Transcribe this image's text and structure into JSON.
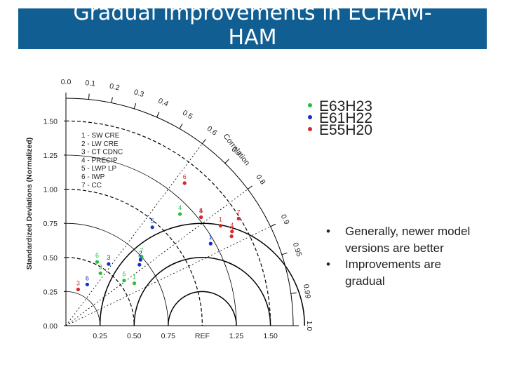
{
  "slide": {
    "title_line1": "Gradual improvements in ECHAM-",
    "title_line2": "HAM",
    "bullets": [
      "Generally, newer model versions are better",
      "Improvements are gradual"
    ],
    "bullet_symbol": "•",
    "colors": {
      "title_bar": "#115e93",
      "E63H23": "#22c03a",
      "E61H22": "#1530c8",
      "E55H20": "#d42a2a"
    }
  },
  "diagram": {
    "type": "taylor-diagram",
    "ylabel": "Standardized Deviations (Normalized)",
    "corr_label": "Correlation",
    "x_ticks": [
      "0.25",
      "0.50",
      "0.75",
      "REF",
      "1.25",
      "1.50"
    ],
    "y_ticks": [
      "0.00",
      "0.25",
      "0.50",
      "0.75",
      "1.00",
      "1.25",
      "1.50"
    ],
    "corr_ticks": [
      "0.0",
      "0.1",
      "0.2",
      "0.3",
      "0.4",
      "0.5",
      "0.6",
      "0.7",
      "0.8",
      "0.9",
      "0.95",
      "0.99",
      "1.0"
    ],
    "variables": [
      "1 - SW CRE",
      "2 - LW CRE",
      "3 - CT CDNC",
      "4 - PRECIP",
      "5 - LWP LP",
      "6 - IWP",
      "7 - CC"
    ],
    "models": [
      "E63H23",
      "E61H22",
      "E55H20"
    ],
    "points": [
      {
        "model": "E63H23",
        "label": "1",
        "corr": 0.85,
        "std": 0.59
      },
      {
        "model": "E63H23",
        "label": "3",
        "corr": 0.55,
        "std": 0.46
      },
      {
        "model": "E63H23",
        "label": "4",
        "corr": 0.715,
        "std": 1.17
      },
      {
        "model": "E63H23",
        "label": "5",
        "corr": 0.79,
        "std": 0.54
      },
      {
        "model": "E63H23",
        "label": "6",
        "corr": 0.44,
        "std": 0.52
      },
      {
        "model": "E63H23",
        "label": "7",
        "corr": 0.74,
        "std": 0.75
      },
      {
        "model": "E61H22",
        "label": "1",
        "corr": 0.87,
        "std": 1.22
      },
      {
        "model": "E61H22",
        "label": "2",
        "corr": 0.75,
        "std": 0.73
      },
      {
        "model": "E61H22",
        "label": "3",
        "corr": 0.57,
        "std": 0.55
      },
      {
        "model": "E61H22",
        "label": "4",
        "corr": 0.78,
        "std": 1.27
      },
      {
        "model": "E61H22",
        "label": "5",
        "corr": 0.66,
        "std": 0.96
      },
      {
        "model": "E61H22",
        "label": "6",
        "corr": 0.46,
        "std": 0.34
      },
      {
        "model": "E61H22",
        "label": "7",
        "corr": 0.77,
        "std": 0.7
      },
      {
        "model": "E55H20",
        "label": "1",
        "corr": 0.84,
        "std": 1.35
      },
      {
        "model": "E55H20",
        "label": "2",
        "corr": 0.88,
        "std": 1.38
      },
      {
        "model": "E55H20",
        "label": "3",
        "corr": 0.32,
        "std": 0.28
      },
      {
        "model": "E55H20",
        "label": "4",
        "corr": 0.87,
        "std": 1.4
      },
      {
        "model": "E55H20",
        "label": "5",
        "corr": 0.78,
        "std": 1.27
      },
      {
        "model": "E55H20",
        "label": "6",
        "corr": 0.64,
        "std": 1.36
      },
      {
        "model": "E55H20",
        "label": "7",
        "corr": 0.85,
        "std": 1.49
      }
    ]
  }
}
